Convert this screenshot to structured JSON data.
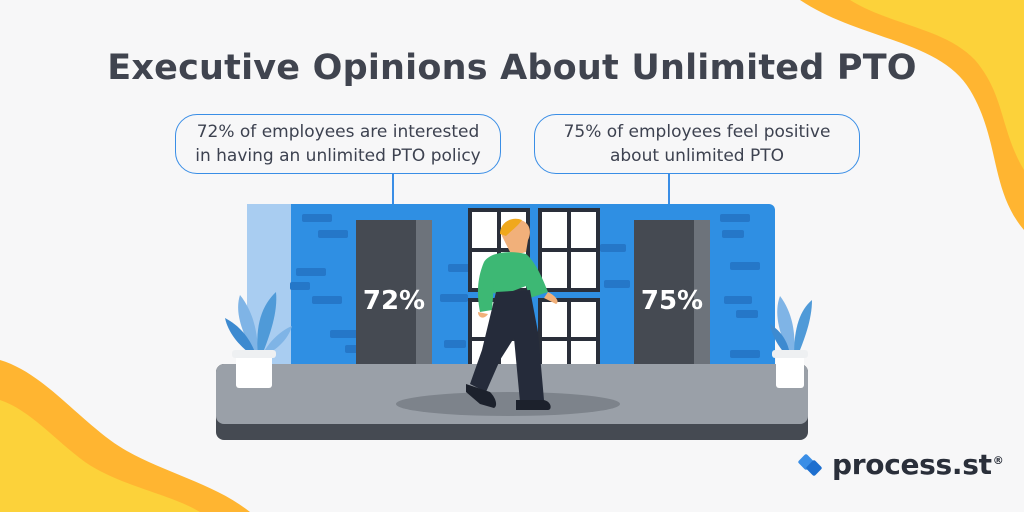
{
  "title": "Executive Opinions About Unlimited PTO",
  "callouts": [
    {
      "line1": "72% of employees are interested",
      "line2": "in having an unlimited PTO policy"
    },
    {
      "line1": "75% of employees feel positive",
      "line2": "about unlimited PTO"
    }
  ],
  "doors": [
    {
      "value": "72%"
    },
    {
      "value": "75%"
    }
  ],
  "logo": {
    "text": "process.",
    "suffix": "st",
    "mark": "®"
  },
  "colors": {
    "wall": "#2f8fe3",
    "door": "#464b53",
    "floor": "#9aa0a8",
    "accent_yellow": "#f9c81a",
    "bubble_border": "#3a8ee6",
    "title": "#40444f"
  },
  "icons": [
    "process-st-logo-icon",
    "plant-icon",
    "person-illustration"
  ]
}
